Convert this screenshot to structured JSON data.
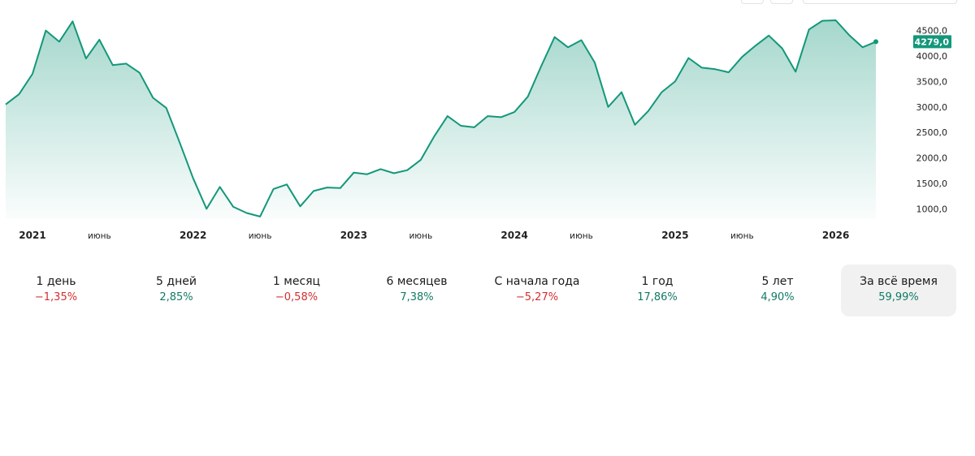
{
  "colors": {
    "line": "#13977a",
    "badge_bg": "#13977a",
    "badge_text": "#ffffff",
    "positive": "#117a65",
    "negative": "#d32f2f",
    "active_tab_bg": "#f1f1f1"
  },
  "chart_data": {
    "type": "area",
    "x_start": "2020-11",
    "x_end": "2026-06",
    "ylim": [
      800,
      4700
    ],
    "y_ticks": [
      1000,
      1500,
      2000,
      2500,
      3000,
      3500,
      4000,
      4500
    ],
    "y_tick_labels": [
      "1000,0",
      "1500,0",
      "2000,0",
      "2500,0",
      "3000,0",
      "3500,0",
      "4000,0",
      "4500,0"
    ],
    "x_ticks": [
      {
        "date": "2021-01",
        "label": "2021",
        "bold": true
      },
      {
        "date": "2021-06",
        "label": "июнь",
        "bold": false
      },
      {
        "date": "2022-01",
        "label": "2022",
        "bold": true
      },
      {
        "date": "2022-06",
        "label": "июнь",
        "bold": false
      },
      {
        "date": "2023-01",
        "label": "2023",
        "bold": true
      },
      {
        "date": "2023-06",
        "label": "июнь",
        "bold": false
      },
      {
        "date": "2024-01",
        "label": "2024",
        "bold": true
      },
      {
        "date": "2024-06",
        "label": "июнь",
        "bold": false
      },
      {
        "date": "2025-01",
        "label": "2025",
        "bold": true
      },
      {
        "date": "2025-06",
        "label": "июнь",
        "bold": false
      },
      {
        "date": "2026-01",
        "label": "2026",
        "bold": true
      }
    ],
    "series": [
      {
        "points": [
          [
            "2020-11",
            3050
          ],
          [
            "2020-12",
            3250
          ],
          [
            "2021-01",
            3650
          ],
          [
            "2021-02",
            4500
          ],
          [
            "2021-03",
            4280
          ],
          [
            "2021-04",
            4680
          ],
          [
            "2021-05",
            3950
          ],
          [
            "2021-06",
            4320
          ],
          [
            "2021-07",
            3820
          ],
          [
            "2021-08",
            3850
          ],
          [
            "2021-09",
            3670
          ],
          [
            "2021-10",
            3180
          ],
          [
            "2021-11",
            2980
          ],
          [
            "2021-12",
            2300
          ],
          [
            "2022-01",
            1600
          ],
          [
            "2022-02",
            1000
          ],
          [
            "2022-03",
            1430
          ],
          [
            "2022-04",
            1040
          ],
          [
            "2022-05",
            920
          ],
          [
            "2022-06",
            850
          ],
          [
            "2022-07",
            1390
          ],
          [
            "2022-08",
            1480
          ],
          [
            "2022-09",
            1050
          ],
          [
            "2022-10",
            1350
          ],
          [
            "2022-11",
            1420
          ],
          [
            "2022-12",
            1410
          ],
          [
            "2023-01",
            1710
          ],
          [
            "2023-02",
            1680
          ],
          [
            "2023-03",
            1780
          ],
          [
            "2023-04",
            1700
          ],
          [
            "2023-05",
            1760
          ],
          [
            "2023-06",
            1960
          ],
          [
            "2023-07",
            2420
          ],
          [
            "2023-08",
            2820
          ],
          [
            "2023-09",
            2630
          ],
          [
            "2023-10",
            2600
          ],
          [
            "2023-11",
            2820
          ],
          [
            "2023-12",
            2800
          ],
          [
            "2024-01",
            2900
          ],
          [
            "2024-02",
            3200
          ],
          [
            "2024-03",
            3800
          ],
          [
            "2024-04",
            4370
          ],
          [
            "2024-05",
            4170
          ],
          [
            "2024-06",
            4310
          ],
          [
            "2024-07",
            3870
          ],
          [
            "2024-08",
            3000
          ],
          [
            "2024-09",
            3290
          ],
          [
            "2024-10",
            2650
          ],
          [
            "2024-11",
            2920
          ],
          [
            "2024-12",
            3290
          ],
          [
            "2025-01",
            3500
          ],
          [
            "2025-02",
            3960
          ],
          [
            "2025-03",
            3770
          ],
          [
            "2025-04",
            3740
          ],
          [
            "2025-05",
            3680
          ],
          [
            "2025-06",
            3980
          ],
          [
            "2025-07",
            4200
          ],
          [
            "2025-08",
            4400
          ],
          [
            "2025-09",
            4150
          ],
          [
            "2025-10",
            3690
          ],
          [
            "2025-11",
            4520
          ],
          [
            "2025-12",
            4690
          ],
          [
            "2026-01",
            4700
          ],
          [
            "2026-02",
            4410
          ],
          [
            "2026-03",
            4170
          ],
          [
            "2026-04",
            4279
          ]
        ]
      }
    ],
    "last_value": 4279,
    "last_value_label": "4279,0",
    "grid": false
  },
  "periods": [
    {
      "label": "1 день",
      "change": "−1,35%",
      "dir": "neg",
      "active": false
    },
    {
      "label": "5 дней",
      "change": "2,85%",
      "dir": "pos",
      "active": false
    },
    {
      "label": "1 месяц",
      "change": "−0,58%",
      "dir": "neg",
      "active": false
    },
    {
      "label": "6 месяцев",
      "change": "7,38%",
      "dir": "pos",
      "active": false
    },
    {
      "label": "С начала года",
      "change": "−5,27%",
      "dir": "neg",
      "active": false
    },
    {
      "label": "1 год",
      "change": "17,86%",
      "dir": "pos",
      "active": false
    },
    {
      "label": "5 лет",
      "change": "4,90%",
      "dir": "pos",
      "active": false
    },
    {
      "label": "За всё время",
      "change": "59,99%",
      "dir": "pos",
      "active": true
    }
  ]
}
